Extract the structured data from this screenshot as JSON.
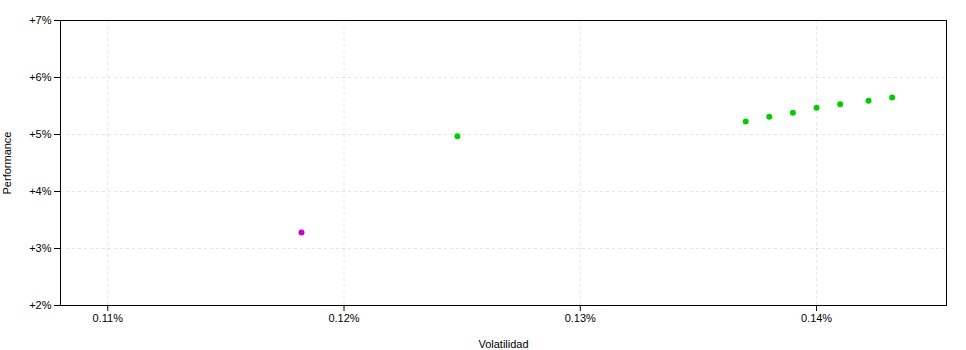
{
  "chart_data": {
    "type": "scatter",
    "xlabel": "Volatilidad",
    "ylabel": "Performance",
    "xlim": [
      0.00108,
      0.001455
    ],
    "ylim": [
      0.02,
      0.07
    ],
    "xticks": [
      {
        "value": 0.0011,
        "label": "0.11%"
      },
      {
        "value": 0.0012,
        "label": "0.12%"
      },
      {
        "value": 0.0013,
        "label": "0.13%"
      },
      {
        "value": 0.0014,
        "label": "0.14%"
      }
    ],
    "yticks": [
      {
        "value": 0.02,
        "label": "+2%"
      },
      {
        "value": 0.03,
        "label": "+3%"
      },
      {
        "value": 0.04,
        "label": "+4%"
      },
      {
        "value": 0.05,
        "label": "+5%"
      },
      {
        "value": 0.06,
        "label": "+6%"
      },
      {
        "value": 0.07,
        "label": "+7%"
      }
    ],
    "grid": true,
    "series": [
      {
        "color": "#00cc00",
        "x": [
          0.001248,
          0.00137,
          0.00138,
          0.00139,
          0.0014,
          0.00141,
          0.001422,
          0.001432
        ],
        "values": [
          0.0497,
          0.0523,
          0.0531,
          0.0538,
          0.0547,
          0.0553,
          0.0559,
          0.0565
        ]
      },
      {
        "color": "#cc00cc",
        "x": [
          0.001182
        ],
        "values": [
          0.0328
        ]
      }
    ]
  }
}
